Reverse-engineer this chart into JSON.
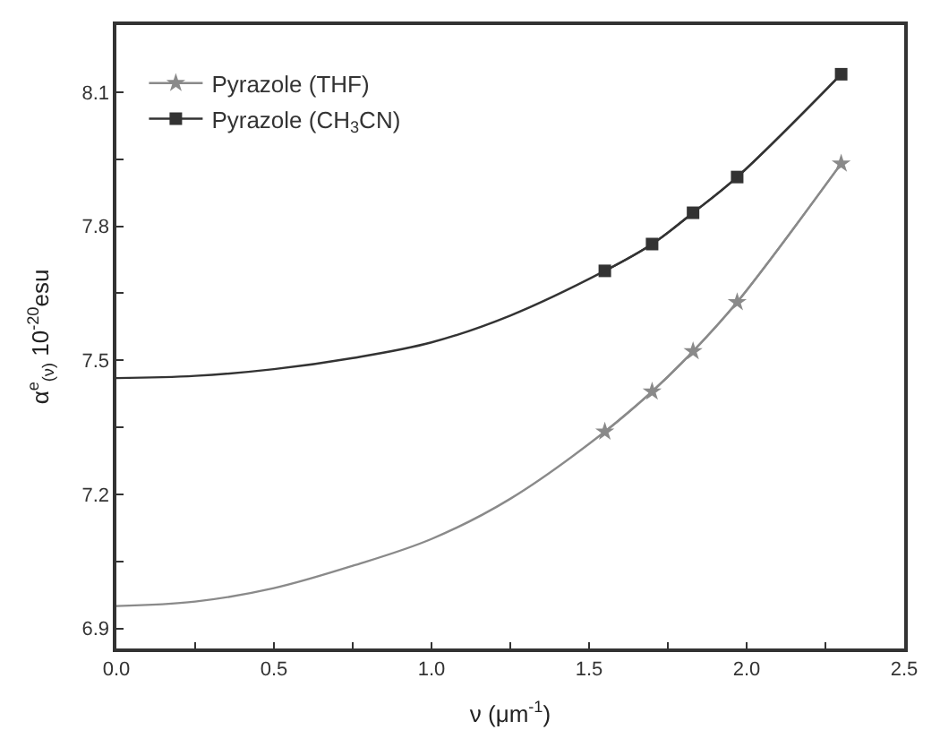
{
  "chart_data": {
    "type": "line",
    "xlabel": "ν (μm$^{-1}$)",
    "ylabel": "α$^{e}$$_{(ν)}$ 10$^{-20}$esu",
    "xlim": [
      0,
      2.5
    ],
    "ylim": [
      6.855,
      8.25
    ],
    "xticks": [
      {
        "value": 0.0,
        "label": "0.0"
      },
      {
        "value": 0.25,
        "label": null
      },
      0.5,
      {
        "value": 0.75,
        "label": null
      },
      {
        "value": 1.0,
        "label": "1.0"
      },
      {
        "value": 1.25,
        "label": null
      },
      1.5,
      {
        "value": 1.75,
        "label": null
      },
      {
        "value": 2.0,
        "label": "2.0"
      },
      {
        "value": 2.25,
        "label": null
      },
      2.5
    ],
    "yticks": [
      6.9,
      {
        "value": 7.05,
        "label": null
      },
      7.2,
      {
        "value": 7.35,
        "label": null
      },
      7.5,
      {
        "value": 7.65,
        "label": null
      },
      7.8,
      {
        "value": 7.95,
        "label": null
      },
      8.1
    ],
    "grid": false,
    "legend": "top left",
    "line_style": "solid",
    "series": [
      {
        "name": "Pyrazole (THF)",
        "color": "#8a8a8a",
        "marker": "star",
        "x": [
          1.55,
          1.7,
          1.83,
          1.97,
          2.3
        ],
        "values": [
          7.34,
          7.43,
          7.52,
          7.63,
          7.94
        ]
      },
      {
        "name": "Pyrazole (CH$_{3}$CN)",
        "color": "#333333",
        "marker": "square",
        "x": [
          1.55,
          1.7,
          1.83,
          1.97,
          2.3
        ],
        "values": [
          7.7,
          7.76,
          7.83,
          7.91,
          8.14
        ]
      },
      {
        "color": "#8a8a8a",
        "marker": "none",
        "x": [
          0,
          0.25,
          0.5,
          0.75,
          1.0,
          1.25,
          1.55,
          1.7,
          1.83,
          1.97,
          2.3
        ],
        "values": [
          6.95,
          6.96,
          6.99,
          7.04,
          7.1,
          7.19,
          7.34,
          7.43,
          7.52,
          7.63,
          7.94
        ]
      },
      {
        "color": "#333333",
        "marker": "none",
        "x": [
          0,
          0.25,
          0.5,
          0.75,
          1.0,
          1.25,
          1.55,
          1.7,
          1.83,
          1.97,
          2.3
        ],
        "values": [
          7.46,
          7.465,
          7.48,
          7.505,
          7.54,
          7.6,
          7.7,
          7.76,
          7.83,
          7.91,
          8.14
        ]
      }
    ]
  }
}
